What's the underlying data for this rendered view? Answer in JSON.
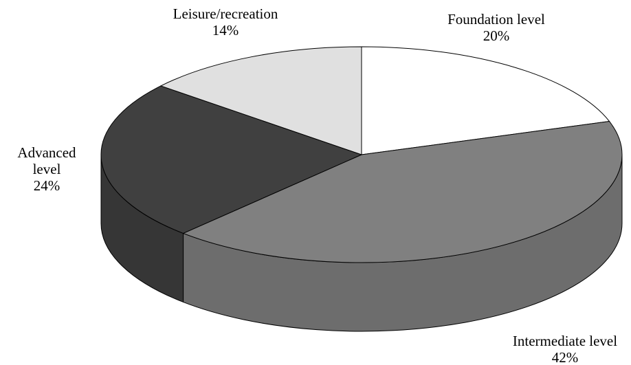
{
  "chart_data": {
    "type": "pie",
    "categories": [
      "Foundation level",
      "Intermediate level",
      "Advanced level",
      "Leisure/recreation"
    ],
    "values": [
      20,
      42,
      24,
      14
    ],
    "value_labels": [
      "20%",
      "42%",
      "24%",
      "14%"
    ],
    "colors": [
      "#ffffff",
      "#808080",
      "#404040",
      "#e0e0e0"
    ]
  }
}
